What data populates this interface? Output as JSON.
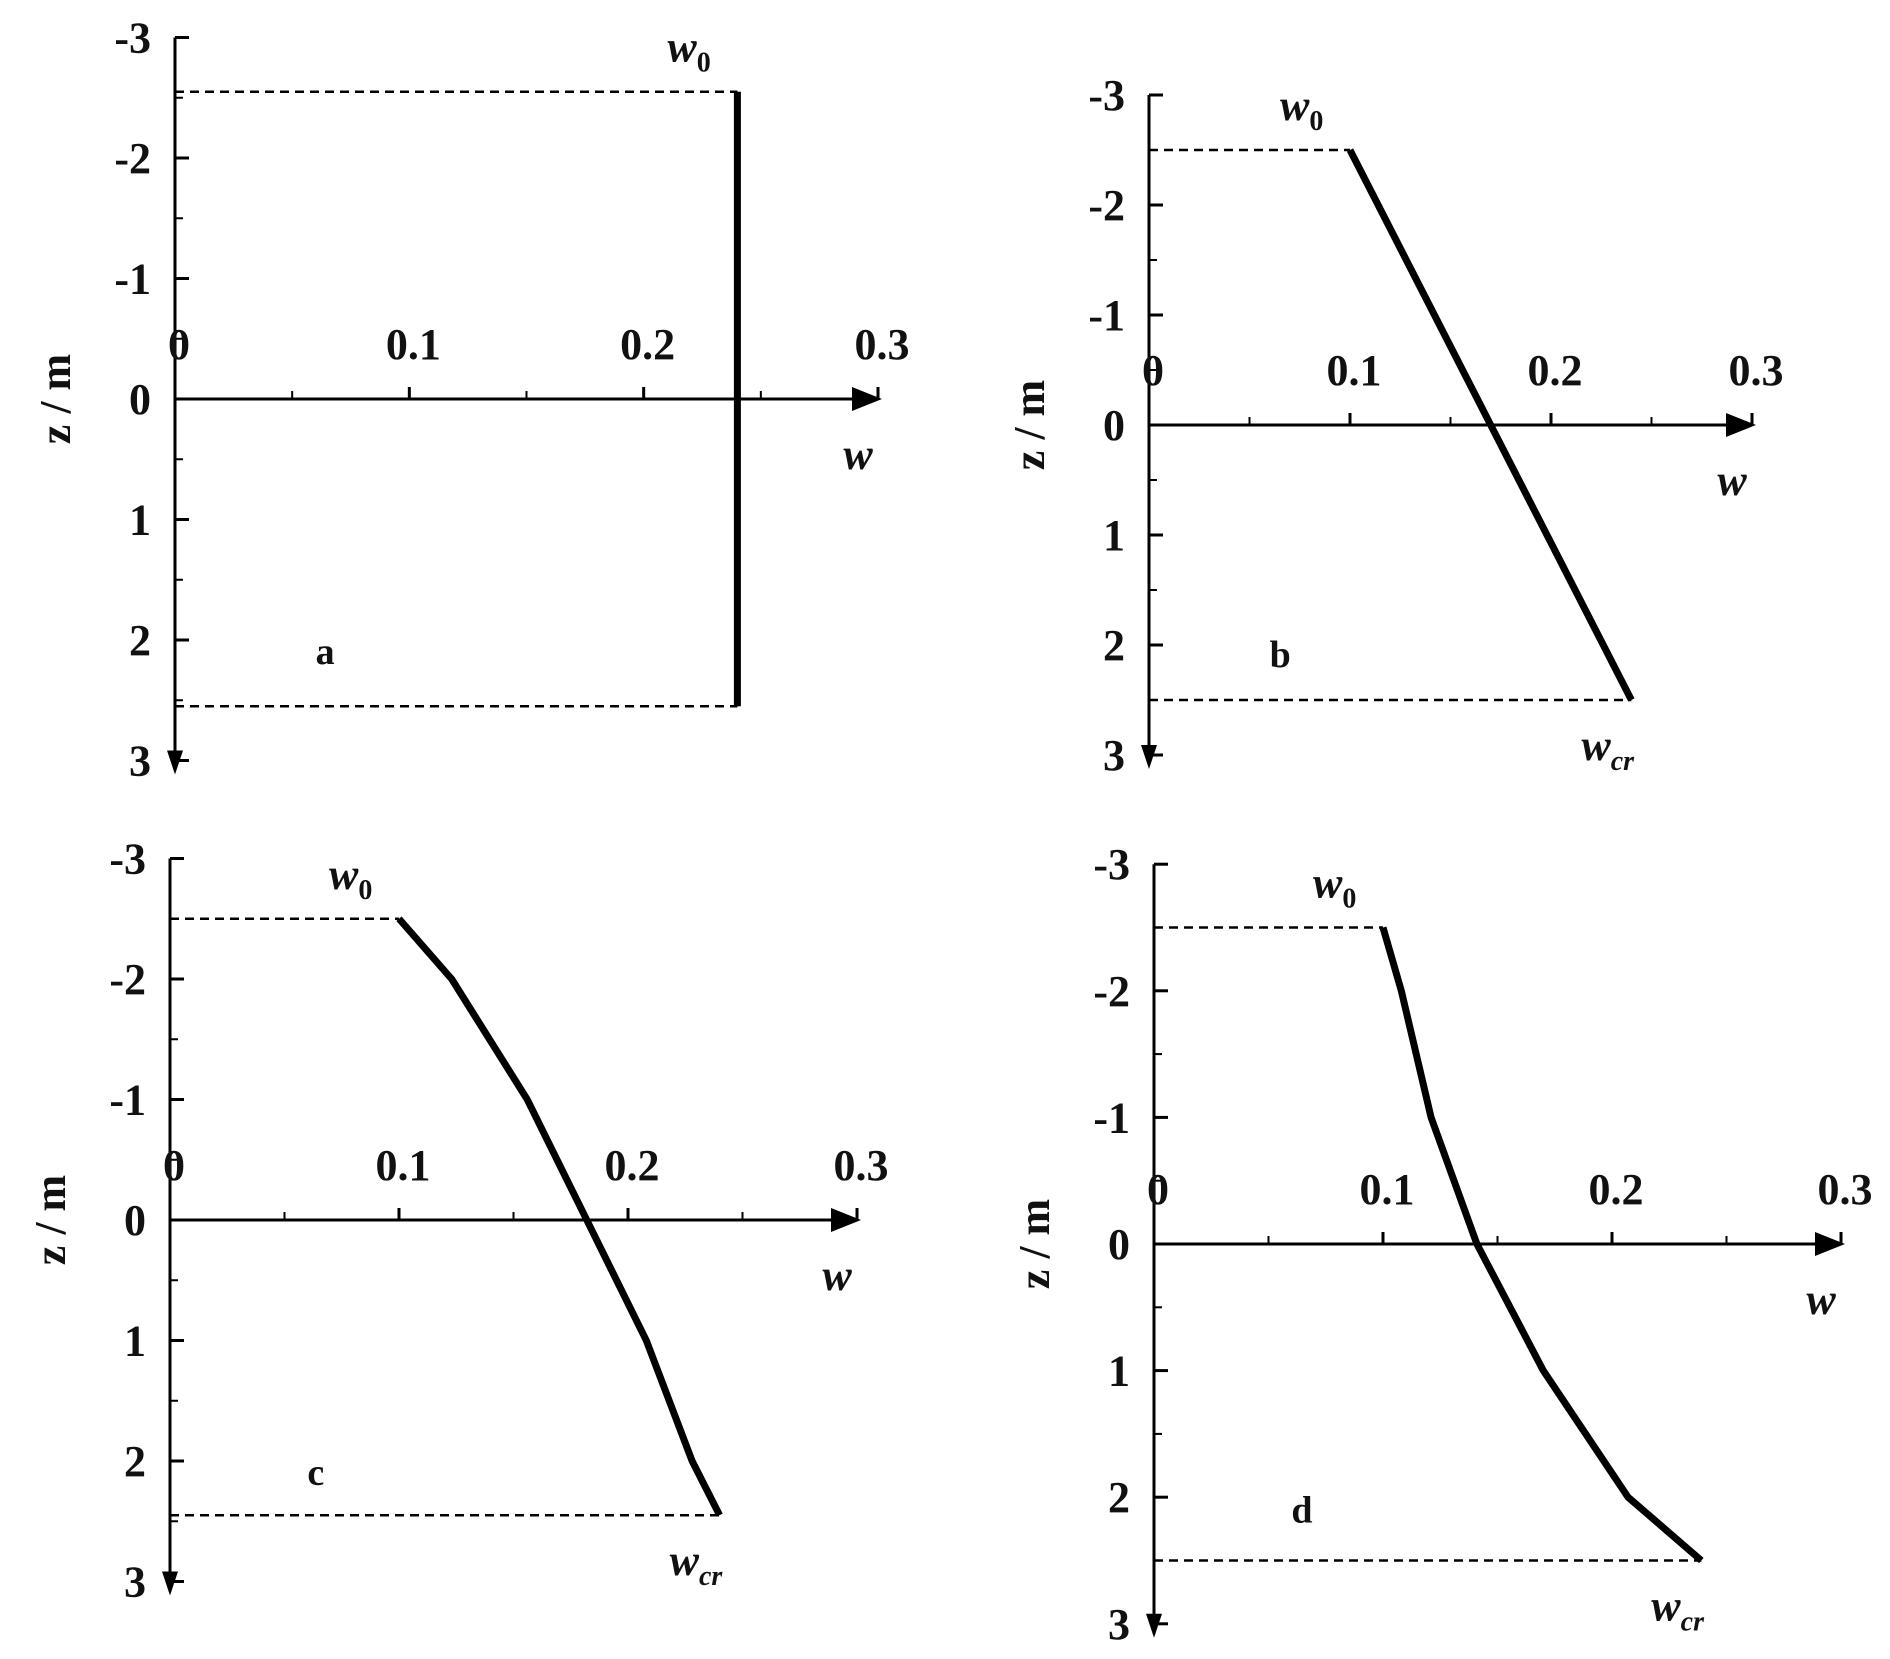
{
  "chart_data": [
    {
      "type": "line",
      "panel_label": "a",
      "x_label": "w",
      "y_label": "z / m",
      "xlim": [
        0,
        0.3
      ],
      "xticks": [
        0,
        0.1,
        0.2,
        0.3
      ],
      "ylim": [
        -3,
        3
      ],
      "yticks": [
        -3,
        -2,
        -1,
        0,
        1,
        2,
        3
      ],
      "x": [
        0.24,
        0.24
      ],
      "values": [
        -2.55,
        2.55
      ],
      "color": "#000000",
      "annotations": [
        {
          "text": "w",
          "subscript": "0"
        }
      ]
    },
    {
      "type": "line",
      "panel_label": "b",
      "x_label": "w",
      "y_label": "z / m",
      "xlim": [
        0,
        0.3
      ],
      "xticks": [
        0,
        0.1,
        0.2,
        0.3
      ],
      "ylim": [
        -3,
        3
      ],
      "yticks": [
        -3,
        -2,
        -1,
        0,
        1,
        2,
        3
      ],
      "x": [
        0.1,
        0.24
      ],
      "values": [
        -2.5,
        2.5
      ],
      "color": "#000000",
      "annotations": [
        {
          "text": "w",
          "subscript": "0"
        },
        {
          "text": "w",
          "subscript": "cr"
        }
      ]
    },
    {
      "type": "line",
      "panel_label": "c",
      "x_label": "w",
      "y_label": "z / m",
      "xlim": [
        0,
        0.3
      ],
      "xticks": [
        0,
        0.1,
        0.2,
        0.3
      ],
      "ylim": [
        -3,
        3
      ],
      "yticks": [
        -3,
        -2,
        -1,
        0,
        1,
        2,
        3
      ],
      "x": [
        0.1,
        0.123,
        0.156,
        0.182,
        0.208,
        0.228,
        0.24
      ],
      "values": [
        -2.5,
        -2,
        -1,
        0,
        1,
        2,
        2.45
      ],
      "color": "#000000",
      "annotations": [
        {
          "text": "w",
          "subscript": "0"
        },
        {
          "text": "w",
          "subscript": "cr"
        }
      ]
    },
    {
      "type": "line",
      "panel_label": "d",
      "x_label": "w",
      "y_label": "z / m",
      "xlim": [
        0,
        0.3
      ],
      "xticks": [
        0,
        0.1,
        0.2,
        0.3
      ],
      "ylim": [
        -3,
        3
      ],
      "yticks": [
        -3,
        -2,
        -1,
        0,
        1,
        2,
        3
      ],
      "x": [
        0.1,
        0.108,
        0.121,
        0.141,
        0.17,
        0.207,
        0.239
      ],
      "values": [
        -2.5,
        -2,
        -1,
        0,
        1,
        2,
        2.5
      ],
      "color": "#000000",
      "annotations": [
        {
          "text": "w",
          "subscript": "0"
        },
        {
          "text": "w",
          "subscript": "cr"
        }
      ]
    }
  ]
}
